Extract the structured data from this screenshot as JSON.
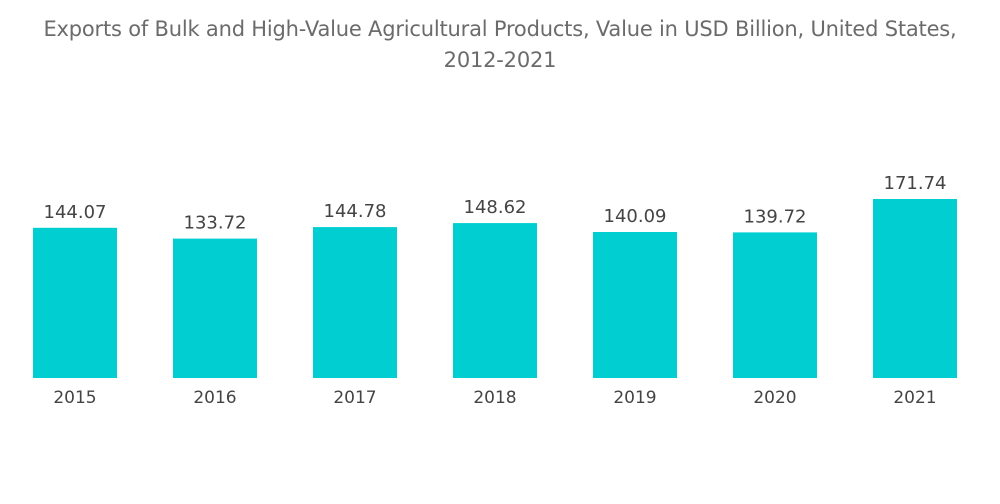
{
  "chart_data": {
    "type": "bar",
    "title": "Exports of Bulk and High-Value Agricultural Products, Value in USD Billion, United States, 2012-2021",
    "categories": [
      "2015",
      "2016",
      "2017",
      "2018",
      "2019",
      "2020",
      "2021"
    ],
    "values": [
      144.07,
      133.72,
      144.78,
      148.62,
      140.09,
      139.72,
      171.74
    ],
    "value_labels": [
      "144.07",
      "133.72",
      "144.78",
      "148.62",
      "140.09",
      "139.72",
      "171.74"
    ],
    "xlabel": "",
    "ylabel": "",
    "ylim": [
      0,
      171.74
    ],
    "grid": false,
    "colors": {
      "bar": "#00CED1"
    }
  }
}
